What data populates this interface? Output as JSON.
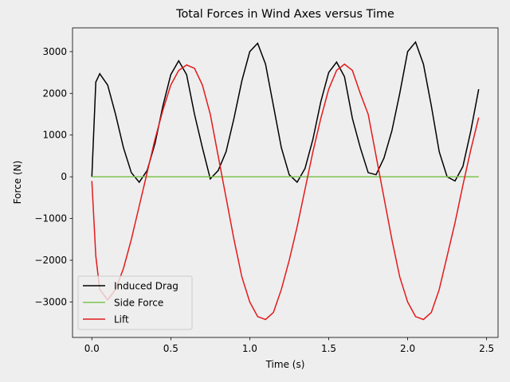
{
  "chart_data": {
    "type": "line",
    "title": "Total Forces in Wind Axes versus Time",
    "xlabel": "Time (s)",
    "ylabel": "Force (N)",
    "x": [
      0,
      0.025,
      0.05,
      0.1,
      0.15,
      0.2,
      0.25,
      0.3,
      0.35,
      0.4,
      0.45,
      0.5,
      0.55,
      0.6,
      0.65,
      0.7,
      0.75,
      0.8,
      0.85,
      0.9,
      0.95,
      1.0,
      1.05,
      1.1,
      1.15,
      1.2,
      1.25,
      1.3,
      1.35,
      1.4,
      1.45,
      1.5,
      1.55,
      1.6,
      1.65,
      1.7,
      1.75,
      1.8,
      1.85,
      1.9,
      1.95,
      2.0,
      2.05,
      2.1,
      2.15,
      2.2,
      2.25,
      2.3,
      2.35,
      2.4,
      2.45
    ],
    "series": [
      {
        "name": "Induced Drag",
        "color": "#000000",
        "values": [
          0,
          2270,
          2470,
          2200,
          1500,
          700,
          100,
          -130,
          150,
          800,
          1700,
          2450,
          2780,
          2450,
          1500,
          700,
          -50,
          150,
          600,
          1400,
          2300,
          3000,
          3200,
          2700,
          1700,
          700,
          50,
          -130,
          200,
          900,
          1800,
          2500,
          2750,
          2400,
          1400,
          700,
          100,
          50,
          450,
          1100,
          2000,
          3000,
          3230,
          2700,
          1700,
          600,
          0,
          -100,
          250,
          1100,
          2100
        ]
      },
      {
        "name": "Side Force",
        "color": "#7fc34f",
        "values": [
          0,
          0,
          0,
          0,
          0,
          0,
          0,
          0,
          0,
          0,
          0,
          0,
          0,
          0,
          0,
          0,
          0,
          0,
          0,
          0,
          0,
          0,
          0,
          0,
          0,
          0,
          0,
          0,
          0,
          0,
          0,
          0,
          0,
          0,
          0,
          0,
          0,
          0,
          0,
          0,
          0,
          0,
          0,
          0,
          0,
          0,
          0,
          0,
          0,
          0,
          0
        ]
      },
      {
        "name": "Lift",
        "color": "#e41a1c",
        "values": [
          -100,
          -1900,
          -2700,
          -2950,
          -2700,
          -2200,
          -1500,
          -700,
          100,
          900,
          1600,
          2200,
          2550,
          2680,
          2600,
          2200,
          1500,
          500,
          -500,
          -1500,
          -2400,
          -3000,
          -3350,
          -3420,
          -3250,
          -2700,
          -2000,
          -1200,
          -300,
          600,
          1400,
          2100,
          2550,
          2700,
          2550,
          2000,
          1500,
          500,
          -500,
          -1500,
          -2400,
          -3000,
          -3350,
          -3420,
          -3250,
          -2700,
          -1900,
          -1100,
          -200,
          650,
          1420
        ]
      }
    ],
    "xlim": [
      -0.1225,
      2.5725
    ],
    "ylim": [
      -3850,
      3570
    ],
    "xticks": [
      {
        "value": 0,
        "label": "0.0"
      },
      0.5,
      {
        "value": 1,
        "label": "1.0"
      },
      1.5,
      {
        "value": 2,
        "label": "2.0"
      },
      2.5
    ],
    "yticks": [
      {
        "value": -3000,
        "label": "−3000"
      },
      {
        "value": -2000,
        "label": "−2000"
      },
      {
        "value": -1000,
        "label": "−1000"
      },
      0,
      1000,
      2000,
      3000
    ],
    "legend": "lower left"
  }
}
